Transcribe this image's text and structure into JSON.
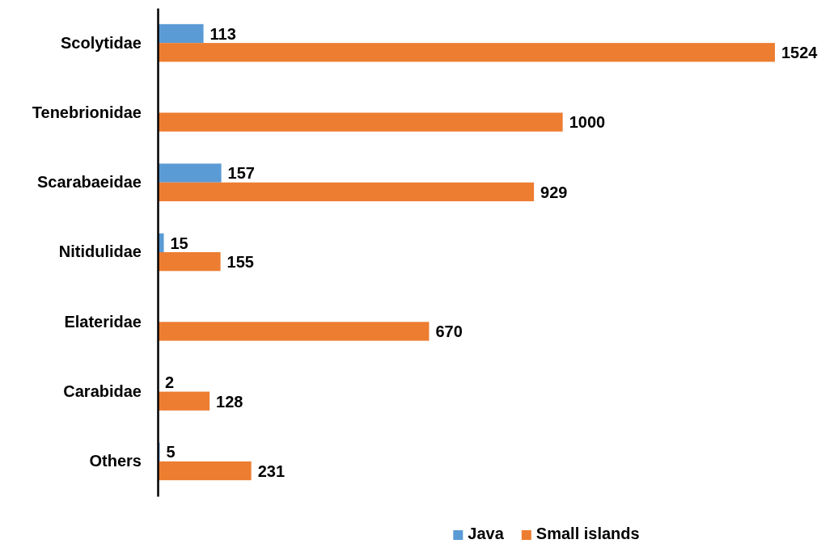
{
  "chart_data": {
    "type": "bar",
    "orientation": "horizontal",
    "categories": [
      "Scolytidae",
      "Tenebrionidae",
      "Scarabaeidae",
      "Nitidulidae",
      "Elateridae",
      "Carabidae",
      "Others"
    ],
    "series": [
      {
        "name": "Java",
        "color": "#5b9bd5",
        "values": [
          113,
          null,
          157,
          15,
          null,
          2,
          5
        ]
      },
      {
        "name": "Small islands",
        "color": "#ed7d31",
        "values": [
          1524,
          1000,
          929,
          155,
          670,
          128,
          231
        ]
      }
    ],
    "tick_labels": "y",
    "data_labels": true,
    "legend": "bottom"
  }
}
